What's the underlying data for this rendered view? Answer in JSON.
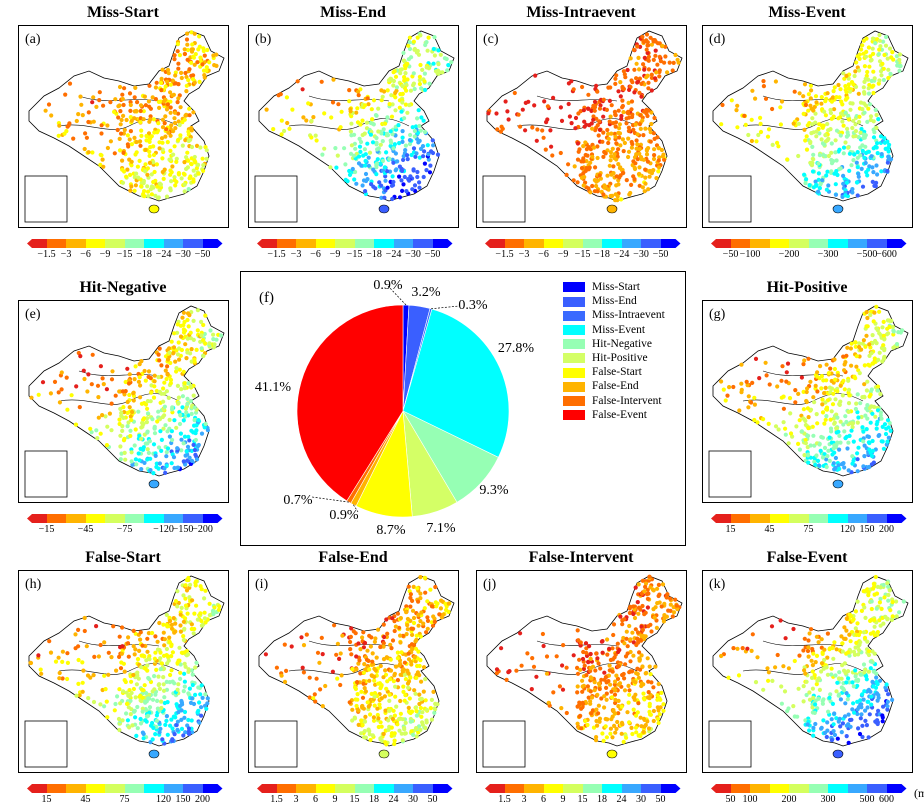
{
  "panels": [
    {
      "letter": "(a)",
      "title": "Miss-Start",
      "ticks": [
        "−1.5",
        "−3",
        "−6",
        "−9",
        "−15",
        "−18",
        "−24",
        "−30",
        "−50"
      ]
    },
    {
      "letter": "(b)",
      "title": "Miss-End",
      "ticks": [
        "−1.5",
        "−3",
        "−6",
        "−9",
        "−15",
        "−18",
        "−24",
        "−30",
        "−50"
      ]
    },
    {
      "letter": "(c)",
      "title": "Miss-Intraevent",
      "ticks": [
        "−1.5",
        "−3",
        "−6",
        "−9",
        "−15",
        "−18",
        "−24",
        "−30",
        "−50"
      ]
    },
    {
      "letter": "(d)",
      "title": "Miss-Event",
      "ticks": [
        "−50",
        "−100",
        "−200",
        "−300",
        "−500",
        "−600"
      ]
    },
    {
      "letter": "(e)",
      "title": "Hit-Negative",
      "ticks": [
        "−15",
        "−45",
        "−75",
        "−120",
        "−150",
        "−200"
      ]
    },
    {
      "letter": "(g)",
      "title": "Hit-Positive",
      "ticks": [
        "15",
        "45",
        "75",
        "120",
        "150",
        "200"
      ]
    },
    {
      "letter": "(h)",
      "title": "False-Start",
      "ticks": [
        "15",
        "45",
        "75",
        "120",
        "150",
        "200"
      ]
    },
    {
      "letter": "(i)",
      "title": "False-End",
      "ticks": [
        "1.5",
        "3",
        "6",
        "9",
        "15",
        "18",
        "24",
        "30",
        "50"
      ]
    },
    {
      "letter": "(j)",
      "title": "False-Intervent",
      "ticks": [
        "1.5",
        "3",
        "6",
        "9",
        "15",
        "18",
        "24",
        "30",
        "50"
      ]
    },
    {
      "letter": "(k)",
      "title": "False-Event",
      "ticks": [
        "50",
        "100",
        "200",
        "300",
        "500",
        "600"
      ],
      "unit": "(mm)"
    }
  ],
  "colorbar_colors": [
    "#e5201c",
    "#ff6e00",
    "#ffb400",
    "#ffff00",
    "#d4ff5e",
    "#96ffb4",
    "#00ffff",
    "#38a8ff",
    "#3a5fff",
    "#0000ff"
  ],
  "chart_data": {
    "type": "pie",
    "panel_label": "(f)",
    "legend_position": "right",
    "slices": [
      {
        "name": "Miss-Start",
        "value": 0.9,
        "label": "0.9%",
        "color": "#0000ff"
      },
      {
        "name": "Miss-End",
        "value": 3.2,
        "label": "3.2%",
        "color": "#3a5fff"
      },
      {
        "name": "Miss-Intraevent",
        "value": 0.3,
        "label": "0.3%",
        "color": "#3a6aff"
      },
      {
        "name": "Miss-Event",
        "value": 27.8,
        "label": "27.8%",
        "color": "#00ffff"
      },
      {
        "name": "Hit-Negative",
        "value": 9.3,
        "label": "9.3%",
        "color": "#96ffb4"
      },
      {
        "name": "Hit-Positive",
        "value": 7.1,
        "label": "7.1%",
        "color": "#d4ff66"
      },
      {
        "name": "False-Start",
        "value": 8.7,
        "label": "8.7%",
        "color": "#ffff00"
      },
      {
        "name": "False-End",
        "value": 0.9,
        "label": "0.9%",
        "color": "#ffb400"
      },
      {
        "name": "False-Intervent",
        "value": 0.7,
        "label": "0.7%",
        "color": "#ff6e00"
      },
      {
        "name": "False-Event",
        "value": 41.1,
        "label": "41.1%",
        "color": "#ff0000"
      }
    ]
  }
}
